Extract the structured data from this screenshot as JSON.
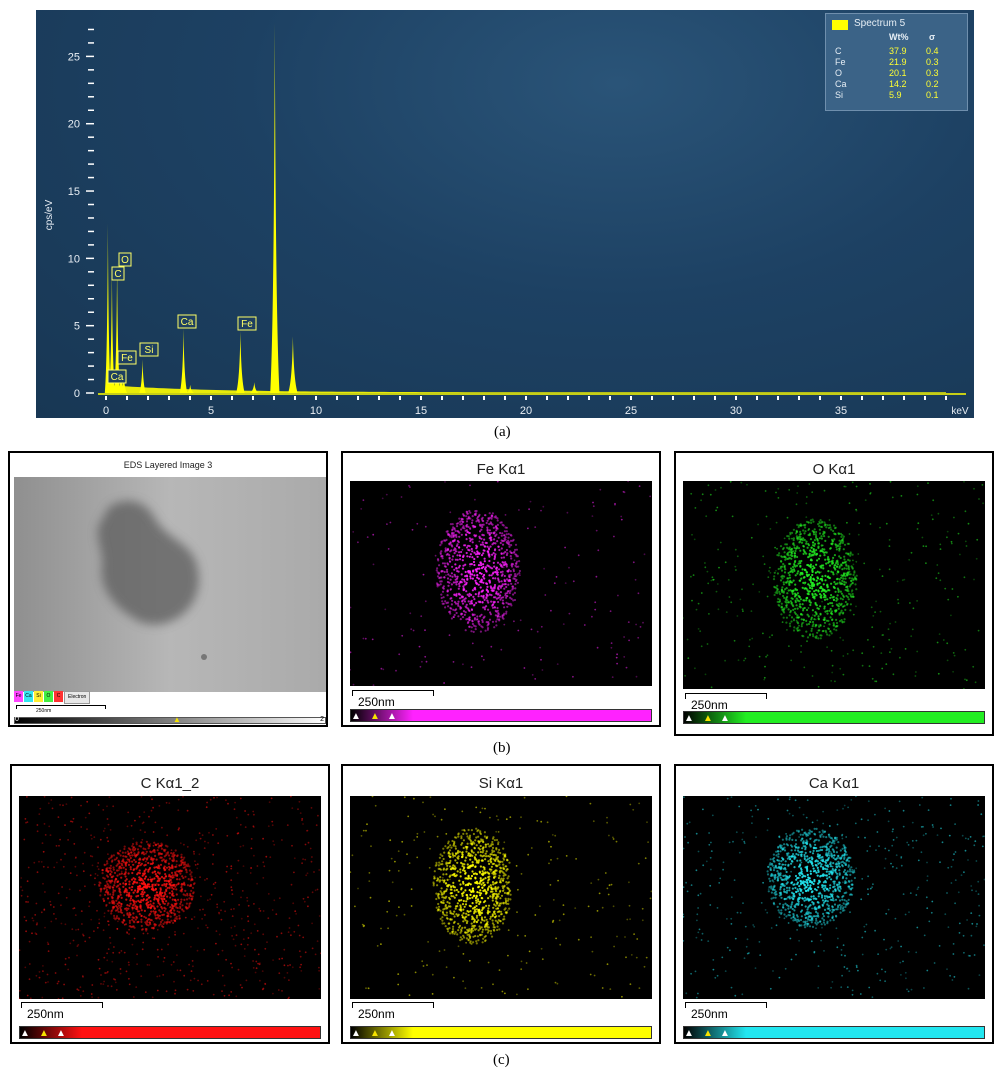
{
  "figure_labels": {
    "a": "(a)",
    "b": "(b)",
    "c": "(c)"
  },
  "chart_data": {
    "type": "line",
    "ylabel": "cps/eV",
    "xlabel": "keV",
    "xlim": [
      0,
      40
    ],
    "ylim": [
      0,
      28
    ],
    "xticks": [
      "0",
      "5",
      "10",
      "15",
      "20",
      "25",
      "30",
      "35"
    ],
    "yticks": [
      "0",
      "5",
      "10",
      "15",
      "20",
      "25"
    ],
    "series": [
      {
        "name": "Spectrum 5",
        "color": "#ffff00",
        "peaks": [
          {
            "x": 0.09,
            "y": 12.6
          },
          {
            "x": 0.28,
            "y": 9.2
          },
          {
            "x": 0.34,
            "y": 1.3
          },
          {
            "x": 0.53,
            "y": 9.8
          },
          {
            "x": 0.71,
            "y": 1.6
          },
          {
            "x": 0.75,
            "y": 1.6
          },
          {
            "x": 0.85,
            "y": 1.5
          },
          {
            "x": 1.74,
            "y": 2.5
          },
          {
            "x": 3.69,
            "y": 4.8
          },
          {
            "x": 4.01,
            "y": 0.6
          },
          {
            "x": 6.4,
            "y": 4.6
          },
          {
            "x": 7.06,
            "y": 0.8
          },
          {
            "x": 8.04,
            "y": 27.5
          },
          {
            "x": 8.9,
            "y": 4.2
          }
        ]
      }
    ],
    "annotations": [
      {
        "text": "O",
        "x": 0.5,
        "y": 10
      },
      {
        "text": "C",
        "x": 0.28,
        "y": 9.2
      },
      {
        "text": "Fe",
        "x": 0.71,
        "y": 1.6
      },
      {
        "text": "Ca",
        "x": 0.34,
        "y": 1.3
      },
      {
        "text": "Si",
        "x": 1.74,
        "y": 2.5
      },
      {
        "text": "Ca",
        "x": 3.69,
        "y": 4.8
      },
      {
        "text": "Fe",
        "x": 6.4,
        "y": 4.6
      }
    ],
    "legend": {
      "placement": "top-right",
      "name": "Spectrum 5",
      "col_wt": "Wt%",
      "col_sigma": "σ",
      "rows": [
        {
          "element": "C",
          "wt": "37.9",
          "sigma": "0.4"
        },
        {
          "element": "Fe",
          "wt": "21.9",
          "sigma": "0.3"
        },
        {
          "element": "O",
          "wt": "20.1",
          "sigma": "0.3"
        },
        {
          "element": "Ca",
          "wt": "14.2",
          "sigma": "0.2"
        },
        {
          "element": "Si",
          "wt": "5.9",
          "sigma": "0.1"
        }
      ]
    }
  },
  "maps": {
    "layered": {
      "title": "EDS Layered Image 3",
      "scale": "250nm",
      "chips": [
        "Fe",
        "Ca",
        "Si",
        "O",
        "C"
      ],
      "chip_colors": [
        "#ff44ff",
        "#33e6f0",
        "#ffee33",
        "#44ee44",
        "#ff3333"
      ],
      "electron": "Electron",
      "bar_min": "0",
      "bar_max": "2"
    },
    "fe": {
      "title": "Fe Kα1",
      "scale": "250nm",
      "color": "#ff22ff"
    },
    "o": {
      "title": "O Kα1",
      "scale": "250nm",
      "color": "#22ee22"
    },
    "c": {
      "title": "C Kα1_2",
      "scale": "250nm",
      "color": "#ff1111"
    },
    "si": {
      "title": "Si Kα1",
      "scale": "250nm",
      "color": "#ffff00"
    },
    "ca": {
      "title": "Ca Kα1",
      "scale": "250nm",
      "color": "#22e6f0"
    }
  }
}
